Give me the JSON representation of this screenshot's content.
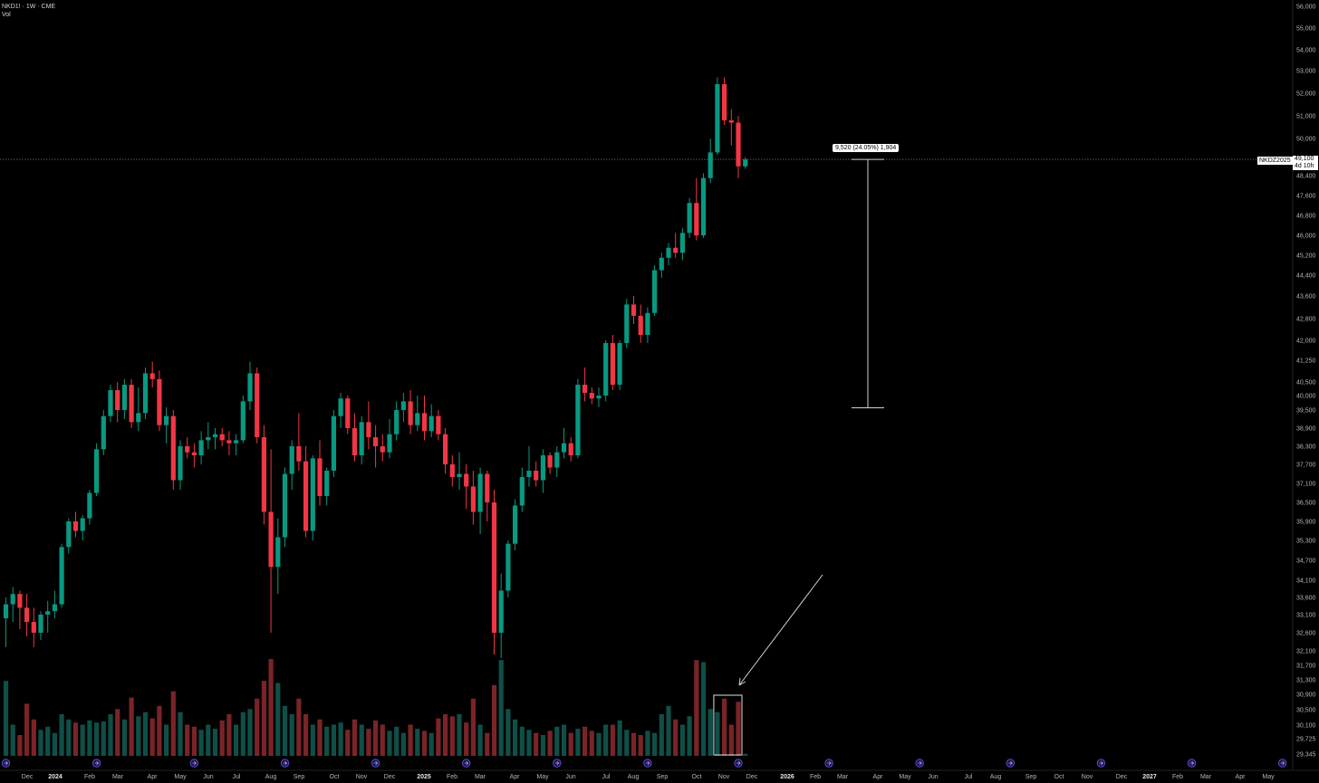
{
  "header": {
    "symbol_line": "NKD1! · 1W · CME",
    "volume_label": "Vol"
  },
  "measure": {
    "label": "9,520 (24.05%) 1,904",
    "from_price": 39580,
    "to_price": 49100
  },
  "last_price": {
    "symbol": "NKDZ2025",
    "price": "49,100",
    "countdown": "4d 10h"
  },
  "colors": {
    "background": "#000000",
    "up": "#089981",
    "down": "#f23645",
    "up_volume": "#0f4f47",
    "down_volume": "#7a2428",
    "axis_text": "#b2b5be",
    "event_marker": "#5b4bd6"
  },
  "annotations": {
    "arrow_icon": "arrow-pointing-to-volume",
    "highlight_box": "volume-highlight-rectangle",
    "event_icon": "rollover-marker-icon"
  },
  "chart_data": {
    "type": "candlestick",
    "title": "",
    "y_ticks": [
      "56,000",
      "55,000",
      "54,000",
      "53,000",
      "52,000",
      "51,000",
      "50,000",
      "48,400",
      "47,600",
      "46,800",
      "46,000",
      "45,200",
      "44,400",
      "43,600",
      "42,800",
      "42,000",
      "41,250",
      "40,500",
      "40,000",
      "39,500",
      "38,900",
      "38,300",
      "37,700",
      "37,100",
      "36,500",
      "35,900",
      "35,300",
      "34,700",
      "34,100",
      "33,600",
      "33,100",
      "32,600",
      "32,100",
      "31,700",
      "31,300",
      "30,900",
      "30,500",
      "30,100",
      "29,725",
      "29,345"
    ],
    "y_tick_values": [
      56000,
      55000,
      54000,
      53000,
      52000,
      51000,
      50000,
      48400,
      47600,
      46800,
      46000,
      45200,
      44400,
      43600,
      42800,
      42000,
      41250,
      40500,
      40000,
      39500,
      38900,
      38300,
      37700,
      37100,
      36500,
      35900,
      35300,
      34700,
      34100,
      33600,
      33100,
      32600,
      32100,
      31700,
      31300,
      30900,
      30500,
      30100,
      29725,
      29345
    ],
    "x_ticks": [
      "Dec",
      "2024",
      "Feb",
      "Mar",
      "Apr",
      "May",
      "Jun",
      "Jul",
      "Aug",
      "Sep",
      "Oct",
      "Nov",
      "Dec",
      "2025",
      "Feb",
      "Mar",
      "Apr",
      "May",
      "Jun",
      "Jul",
      "Aug",
      "Sep",
      "Oct",
      "Nov",
      "Dec",
      "2026",
      "Feb",
      "Mar",
      "Apr",
      "May",
      "Jun",
      "Jul",
      "Aug",
      "Sep",
      "Oct",
      "Nov",
      "Dec",
      "2027",
      "Feb",
      "Mar",
      "Apr",
      "May"
    ],
    "x_bold": [
      "2024",
      "2025",
      "2026",
      "2027"
    ],
    "candles": [
      {
        "o": 33000,
        "h": 33600,
        "l": 32200,
        "c": 33400,
        "v": 0.72
      },
      {
        "o": 33400,
        "h": 33900,
        "l": 32900,
        "c": 33700,
        "v": 0.3
      },
      {
        "o": 33700,
        "h": 33800,
        "l": 32700,
        "c": 33300,
        "v": 0.2
      },
      {
        "o": 33300,
        "h": 33700,
        "l": 32500,
        "c": 32900,
        "v": 0.5
      },
      {
        "o": 32900,
        "h": 33300,
        "l": 32200,
        "c": 32600,
        "v": 0.35
      },
      {
        "o": 32600,
        "h": 33200,
        "l": 32400,
        "c": 33100,
        "v": 0.25
      },
      {
        "o": 33100,
        "h": 33500,
        "l": 32600,
        "c": 33200,
        "v": 0.28
      },
      {
        "o": 33200,
        "h": 33800,
        "l": 33000,
        "c": 33400,
        "v": 0.22
      },
      {
        "o": 33400,
        "h": 35200,
        "l": 33300,
        "c": 35100,
        "v": 0.4
      },
      {
        "o": 35100,
        "h": 36000,
        "l": 34900,
        "c": 35900,
        "v": 0.35
      },
      {
        "o": 35900,
        "h": 36200,
        "l": 35400,
        "c": 35600,
        "v": 0.32
      },
      {
        "o": 35600,
        "h": 36100,
        "l": 35300,
        "c": 36000,
        "v": 0.3
      },
      {
        "o": 36000,
        "h": 36900,
        "l": 35800,
        "c": 36800,
        "v": 0.34
      },
      {
        "o": 36800,
        "h": 38400,
        "l": 36700,
        "c": 38200,
        "v": 0.32
      },
      {
        "o": 38200,
        "h": 39500,
        "l": 38000,
        "c": 39300,
        "v": 0.33
      },
      {
        "o": 39300,
        "h": 40400,
        "l": 39100,
        "c": 40200,
        "v": 0.4
      },
      {
        "o": 40200,
        "h": 40500,
        "l": 39100,
        "c": 39500,
        "v": 0.45
      },
      {
        "o": 39500,
        "h": 40600,
        "l": 39200,
        "c": 40400,
        "v": 0.35
      },
      {
        "o": 40400,
        "h": 40600,
        "l": 38900,
        "c": 39100,
        "v": 0.56
      },
      {
        "o": 39100,
        "h": 40300,
        "l": 38800,
        "c": 39400,
        "v": 0.38
      },
      {
        "o": 39400,
        "h": 41000,
        "l": 39200,
        "c": 40800,
        "v": 0.42
      },
      {
        "o": 40800,
        "h": 41200,
        "l": 40300,
        "c": 40600,
        "v": 0.36
      },
      {
        "o": 40600,
        "h": 40900,
        "l": 38800,
        "c": 39000,
        "v": 0.48
      },
      {
        "o": 39000,
        "h": 39600,
        "l": 38400,
        "c": 39300,
        "v": 0.3
      },
      {
        "o": 39300,
        "h": 39500,
        "l": 36900,
        "c": 37200,
        "v": 0.62
      },
      {
        "o": 37200,
        "h": 38500,
        "l": 36900,
        "c": 38300,
        "v": 0.42
      },
      {
        "o": 38300,
        "h": 38600,
        "l": 37900,
        "c": 38100,
        "v": 0.3
      },
      {
        "o": 38100,
        "h": 38400,
        "l": 37600,
        "c": 38000,
        "v": 0.28
      },
      {
        "o": 38000,
        "h": 38800,
        "l": 37700,
        "c": 38500,
        "v": 0.25
      },
      {
        "o": 38500,
        "h": 39100,
        "l": 38200,
        "c": 38600,
        "v": 0.3
      },
      {
        "o": 38600,
        "h": 38900,
        "l": 38200,
        "c": 38700,
        "v": 0.26
      },
      {
        "o": 38700,
        "h": 38900,
        "l": 38300,
        "c": 38500,
        "v": 0.34
      },
      {
        "o": 38500,
        "h": 38800,
        "l": 38000,
        "c": 38400,
        "v": 0.4
      },
      {
        "o": 38400,
        "h": 38700,
        "l": 38000,
        "c": 38500,
        "v": 0.3
      },
      {
        "o": 38500,
        "h": 40000,
        "l": 38400,
        "c": 39800,
        "v": 0.42
      },
      {
        "o": 39800,
        "h": 41200,
        "l": 39500,
        "c": 40800,
        "v": 0.45
      },
      {
        "o": 40800,
        "h": 41000,
        "l": 38400,
        "c": 38600,
        "v": 0.55
      },
      {
        "o": 38600,
        "h": 39000,
        "l": 35800,
        "c": 36200,
        "v": 0.72
      },
      {
        "o": 36200,
        "h": 38200,
        "l": 32600,
        "c": 34500,
        "v": 0.93
      },
      {
        "o": 34500,
        "h": 36000,
        "l": 33700,
        "c": 35400,
        "v": 0.7
      },
      {
        "o": 35400,
        "h": 37600,
        "l": 35100,
        "c": 37400,
        "v": 0.48
      },
      {
        "o": 37400,
        "h": 38500,
        "l": 36900,
        "c": 38300,
        "v": 0.4
      },
      {
        "o": 38300,
        "h": 39400,
        "l": 37500,
        "c": 37800,
        "v": 0.55
      },
      {
        "o": 37800,
        "h": 38300,
        "l": 35400,
        "c": 35600,
        "v": 0.4
      },
      {
        "o": 35600,
        "h": 38000,
        "l": 35300,
        "c": 37900,
        "v": 0.3
      },
      {
        "o": 37900,
        "h": 38500,
        "l": 36400,
        "c": 36700,
        "v": 0.35
      },
      {
        "o": 36700,
        "h": 37600,
        "l": 36400,
        "c": 37500,
        "v": 0.28
      },
      {
        "o": 37500,
        "h": 39500,
        "l": 37300,
        "c": 39300,
        "v": 0.3
      },
      {
        "o": 39300,
        "h": 40100,
        "l": 38900,
        "c": 39900,
        "v": 0.32
      },
      {
        "o": 39900,
        "h": 40000,
        "l": 38700,
        "c": 38900,
        "v": 0.25
      },
      {
        "o": 38900,
        "h": 39400,
        "l": 37800,
        "c": 38000,
        "v": 0.35
      },
      {
        "o": 38000,
        "h": 39300,
        "l": 37700,
        "c": 39100,
        "v": 0.3
      },
      {
        "o": 39100,
        "h": 39800,
        "l": 38200,
        "c": 38600,
        "v": 0.26
      },
      {
        "o": 38600,
        "h": 39000,
        "l": 37600,
        "c": 38300,
        "v": 0.34
      },
      {
        "o": 38300,
        "h": 38700,
        "l": 37800,
        "c": 38100,
        "v": 0.3
      },
      {
        "o": 38100,
        "h": 39200,
        "l": 37900,
        "c": 38700,
        "v": 0.24
      },
      {
        "o": 38700,
        "h": 39800,
        "l": 38500,
        "c": 39500,
        "v": 0.28
      },
      {
        "o": 39500,
        "h": 40100,
        "l": 39100,
        "c": 39800,
        "v": 0.22
      },
      {
        "o": 39800,
        "h": 40200,
        "l": 38700,
        "c": 39000,
        "v": 0.3
      },
      {
        "o": 39000,
        "h": 40000,
        "l": 38800,
        "c": 39400,
        "v": 0.26
      },
      {
        "o": 39400,
        "h": 40000,
        "l": 38500,
        "c": 38800,
        "v": 0.24
      },
      {
        "o": 38800,
        "h": 39700,
        "l": 38600,
        "c": 39300,
        "v": 0.22
      },
      {
        "o": 39300,
        "h": 39500,
        "l": 38500,
        "c": 38700,
        "v": 0.36
      },
      {
        "o": 38700,
        "h": 38900,
        "l": 37400,
        "c": 37700,
        "v": 0.4
      },
      {
        "o": 37700,
        "h": 38000,
        "l": 37000,
        "c": 37300,
        "v": 0.38
      },
      {
        "o": 37300,
        "h": 38100,
        "l": 36900,
        "c": 37400,
        "v": 0.4
      },
      {
        "o": 37400,
        "h": 37700,
        "l": 36300,
        "c": 37000,
        "v": 0.32
      },
      {
        "o": 37000,
        "h": 37500,
        "l": 35800,
        "c": 36200,
        "v": 0.55
      },
      {
        "o": 36200,
        "h": 37600,
        "l": 35500,
        "c": 37400,
        "v": 0.3
      },
      {
        "o": 37400,
        "h": 37500,
        "l": 35900,
        "c": 36500,
        "v": 0.22
      },
      {
        "o": 36500,
        "h": 36900,
        "l": 32000,
        "c": 32600,
        "v": 0.68
      },
      {
        "o": 32600,
        "h": 34300,
        "l": 31900,
        "c": 33800,
        "v": 0.92
      },
      {
        "o": 33800,
        "h": 35300,
        "l": 33600,
        "c": 35200,
        "v": 0.45
      },
      {
        "o": 35200,
        "h": 36600,
        "l": 35000,
        "c": 36400,
        "v": 0.35
      },
      {
        "o": 36400,
        "h": 37600,
        "l": 36200,
        "c": 37300,
        "v": 0.28
      },
      {
        "o": 37300,
        "h": 38300,
        "l": 37000,
        "c": 37500,
        "v": 0.25
      },
      {
        "o": 37500,
        "h": 37800,
        "l": 37000,
        "c": 37200,
        "v": 0.22
      },
      {
        "o": 37200,
        "h": 38200,
        "l": 36800,
        "c": 38000,
        "v": 0.2
      },
      {
        "o": 38000,
        "h": 38100,
        "l": 37400,
        "c": 37600,
        "v": 0.24
      },
      {
        "o": 37600,
        "h": 38300,
        "l": 37300,
        "c": 38100,
        "v": 0.28
      },
      {
        "o": 38100,
        "h": 38900,
        "l": 37900,
        "c": 38400,
        "v": 0.3
      },
      {
        "o": 38400,
        "h": 38600,
        "l": 37800,
        "c": 38000,
        "v": 0.22
      },
      {
        "o": 38000,
        "h": 40600,
        "l": 37900,
        "c": 40400,
        "v": 0.26
      },
      {
        "o": 40400,
        "h": 41000,
        "l": 39800,
        "c": 40100,
        "v": 0.28
      },
      {
        "o": 40100,
        "h": 40300,
        "l": 39700,
        "c": 39900,
        "v": 0.24
      },
      {
        "o": 39900,
        "h": 40300,
        "l": 39600,
        "c": 40000,
        "v": 0.22
      },
      {
        "o": 40000,
        "h": 42000,
        "l": 39800,
        "c": 41900,
        "v": 0.3
      },
      {
        "o": 41900,
        "h": 42200,
        "l": 40200,
        "c": 40400,
        "v": 0.3
      },
      {
        "o": 40400,
        "h": 42000,
        "l": 40200,
        "c": 41900,
        "v": 0.34
      },
      {
        "o": 41900,
        "h": 43500,
        "l": 41700,
        "c": 43300,
        "v": 0.25
      },
      {
        "o": 43300,
        "h": 43600,
        "l": 42600,
        "c": 42900,
        "v": 0.22
      },
      {
        "o": 42900,
        "h": 43300,
        "l": 41900,
        "c": 42200,
        "v": 0.2
      },
      {
        "o": 42200,
        "h": 43200,
        "l": 41900,
        "c": 43000,
        "v": 0.24
      },
      {
        "o": 43000,
        "h": 44800,
        "l": 42900,
        "c": 44600,
        "v": 0.22
      },
      {
        "o": 44600,
        "h": 45300,
        "l": 44300,
        "c": 45100,
        "v": 0.4
      },
      {
        "o": 45100,
        "h": 45700,
        "l": 44800,
        "c": 45500,
        "v": 0.48
      },
      {
        "o": 45500,
        "h": 46100,
        "l": 45100,
        "c": 45300,
        "v": 0.35
      },
      {
        "o": 45300,
        "h": 46300,
        "l": 45000,
        "c": 46100,
        "v": 0.3
      },
      {
        "o": 46100,
        "h": 47500,
        "l": 45900,
        "c": 47300,
        "v": 0.38
      },
      {
        "o": 47300,
        "h": 48300,
        "l": 45800,
        "c": 46000,
        "v": 0.92
      },
      {
        "o": 46000,
        "h": 48500,
        "l": 45900,
        "c": 48300,
        "v": 0.9
      },
      {
        "o": 48300,
        "h": 50000,
        "l": 48100,
        "c": 49400,
        "v": 0.45
      },
      {
        "o": 49400,
        "h": 52700,
        "l": 49300,
        "c": 52400,
        "v": 0.42
      },
      {
        "o": 52400,
        "h": 52700,
        "l": 50600,
        "c": 50800,
        "v": 0.55
      },
      {
        "o": 50800,
        "h": 51300,
        "l": 49700,
        "c": 50700,
        "v": 0.3
      },
      {
        "o": 50700,
        "h": 51000,
        "l": 48300,
        "c": 48800,
        "v": 0.52
      },
      {
        "o": 48800,
        "h": 49200,
        "l": 48700,
        "c": 49100,
        "v": 0.02
      }
    ],
    "event_marker_weeks": [
      0,
      13,
      27,
      40,
      53,
      66,
      79,
      92,
      105,
      118,
      131,
      144,
      157,
      170,
      183
    ]
  }
}
